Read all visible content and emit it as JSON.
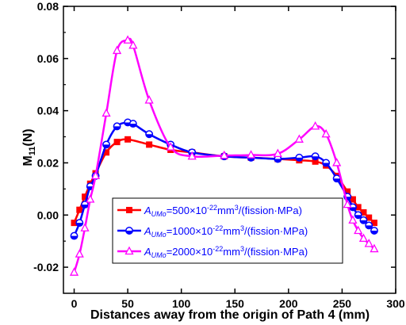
{
  "chart_data": {
    "type": "line",
    "xlabel": "Distances away from the origin of Path 4 (mm)",
    "ylabel_main": "M",
    "ylabel_sub": "11",
    "ylabel_unit": "(N)",
    "xlim": [
      -10,
      300
    ],
    "ylim": [
      -0.03,
      0.08
    ],
    "xticks": [
      0,
      50,
      100,
      150,
      200,
      250,
      300
    ],
    "yticks": [
      -0.02,
      0.0,
      0.02,
      0.04,
      0.06,
      0.08
    ],
    "xtick_labels": [
      "0",
      "50",
      "100",
      "150",
      "200",
      "250",
      "300"
    ],
    "ytick_labels": [
      "-0.02",
      "0.00",
      "0.02",
      "0.04",
      "0.06",
      "0.08"
    ],
    "legend_position": "lower-center",
    "series": [
      {
        "legend_prefix": "A",
        "legend_sub": "UMo",
        "legend_mid": "=500×10",
        "legend_exp": "-22",
        "legend_unit": "mm",
        "legend_exp2": "3",
        "legend_tail": "/(fission·MPa)",
        "color": "#ff0000",
        "marker": "square",
        "x": [
          0,
          5,
          10,
          15,
          20,
          30,
          40,
          50,
          70,
          90,
          110,
          140,
          165,
          190,
          210,
          225,
          235,
          245,
          255,
          260,
          265,
          270,
          275,
          280
        ],
        "y": [
          -0.003,
          0.002,
          0.007,
          0.012,
          0.016,
          0.024,
          0.028,
          0.029,
          0.027,
          0.025,
          0.024,
          0.0225,
          0.022,
          0.0215,
          0.021,
          0.0205,
          0.019,
          0.015,
          0.009,
          0.006,
          0.003,
          0.001,
          -0.001,
          -0.003
        ]
      },
      {
        "legend_prefix": "A",
        "legend_sub": "UMo",
        "legend_mid": "=1000×10",
        "legend_exp": "-22",
        "legend_unit": "mm",
        "legend_exp2": "3",
        "legend_tail": "/(fission·MPa)",
        "color": "#0000ff",
        "marker": "circle",
        "x": [
          0,
          5,
          10,
          15,
          20,
          30,
          40,
          50,
          55,
          70,
          90,
          110,
          140,
          165,
          190,
          210,
          225,
          235,
          245,
          255,
          260,
          265,
          270,
          275,
          280
        ],
        "y": [
          -0.008,
          -0.003,
          0.004,
          0.011,
          0.015,
          0.027,
          0.034,
          0.0355,
          0.035,
          0.031,
          0.027,
          0.024,
          0.0225,
          0.022,
          0.0215,
          0.022,
          0.0225,
          0.02,
          0.014,
          0.007,
          0.003,
          0.0,
          -0.002,
          -0.004,
          -0.006
        ]
      },
      {
        "legend_prefix": "A",
        "legend_sub": "UMo",
        "legend_mid": "=2000×10",
        "legend_exp": "-22",
        "legend_unit": "mm",
        "legend_exp2": "3",
        "legend_tail": "/(fission·MPa)",
        "color": "#ff00ff",
        "marker": "triangle",
        "x": [
          0,
          5,
          10,
          15,
          20,
          30,
          40,
          50,
          55,
          70,
          90,
          110,
          140,
          165,
          190,
          210,
          225,
          235,
          245,
          255,
          260,
          265,
          270,
          275,
          280
        ],
        "y": [
          -0.022,
          -0.015,
          -0.005,
          0.006,
          0.015,
          0.039,
          0.063,
          0.067,
          0.065,
          0.044,
          0.026,
          0.0225,
          0.0228,
          0.023,
          0.0235,
          0.029,
          0.034,
          0.031,
          0.02,
          0.004,
          -0.002,
          -0.006,
          -0.009,
          -0.011,
          -0.013
        ]
      }
    ]
  }
}
